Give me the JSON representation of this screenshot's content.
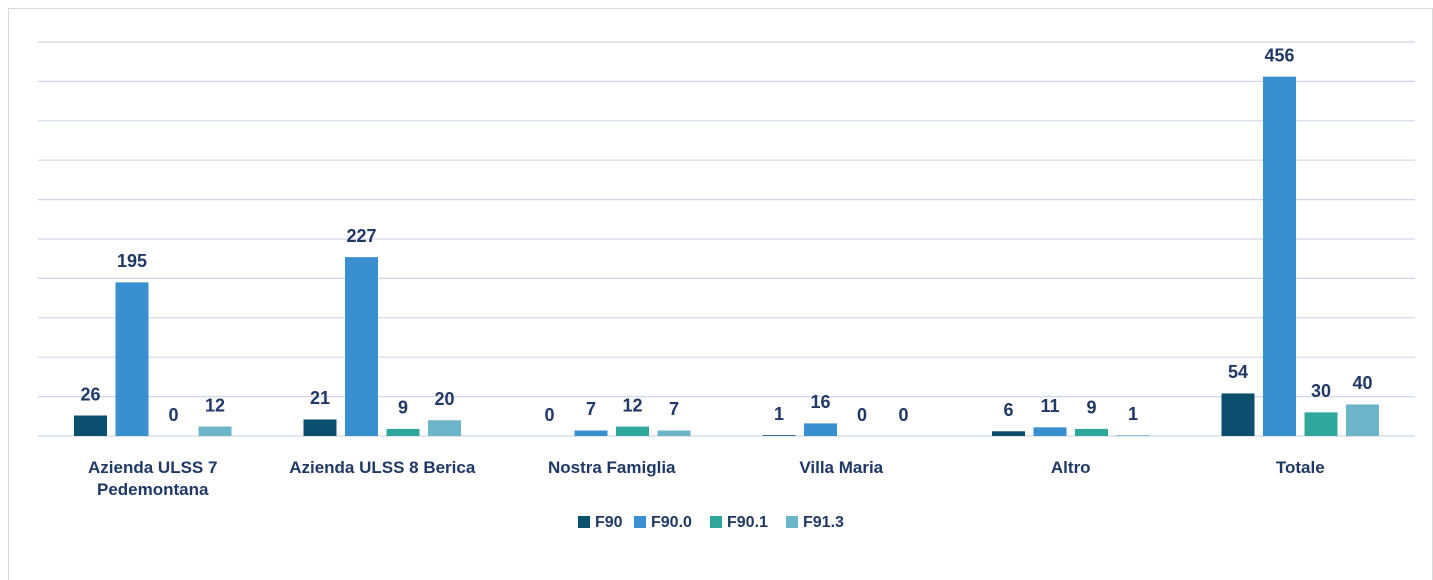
{
  "chart_data": {
    "type": "bar",
    "categories": [
      "Azienda ULSS 7 Pedemontana",
      "Azienda ULSS 8 Berica",
      "Nostra Famiglia",
      "Villa Maria",
      "Altro",
      "Totale"
    ],
    "series": [
      {
        "name": "F90",
        "color": "#0b4f6f",
        "values": [
          26,
          21,
          0,
          1,
          6,
          54
        ]
      },
      {
        "name": "F90.0",
        "color": "#3a8fd0",
        "values": [
          195,
          227,
          7,
          16,
          11,
          456
        ]
      },
      {
        "name": "F90.1",
        "color": "#2fa89b",
        "values": [
          0,
          9,
          12,
          0,
          9,
          30
        ]
      },
      {
        "name": "F91.3",
        "color": "#6cb5cb",
        "values": [
          12,
          20,
          7,
          0,
          1,
          40
        ]
      }
    ],
    "ylim": [
      0,
      500
    ],
    "yticks": [
      0,
      50,
      100,
      150,
      200,
      250,
      300,
      350,
      400,
      450,
      500
    ],
    "grid": true
  }
}
